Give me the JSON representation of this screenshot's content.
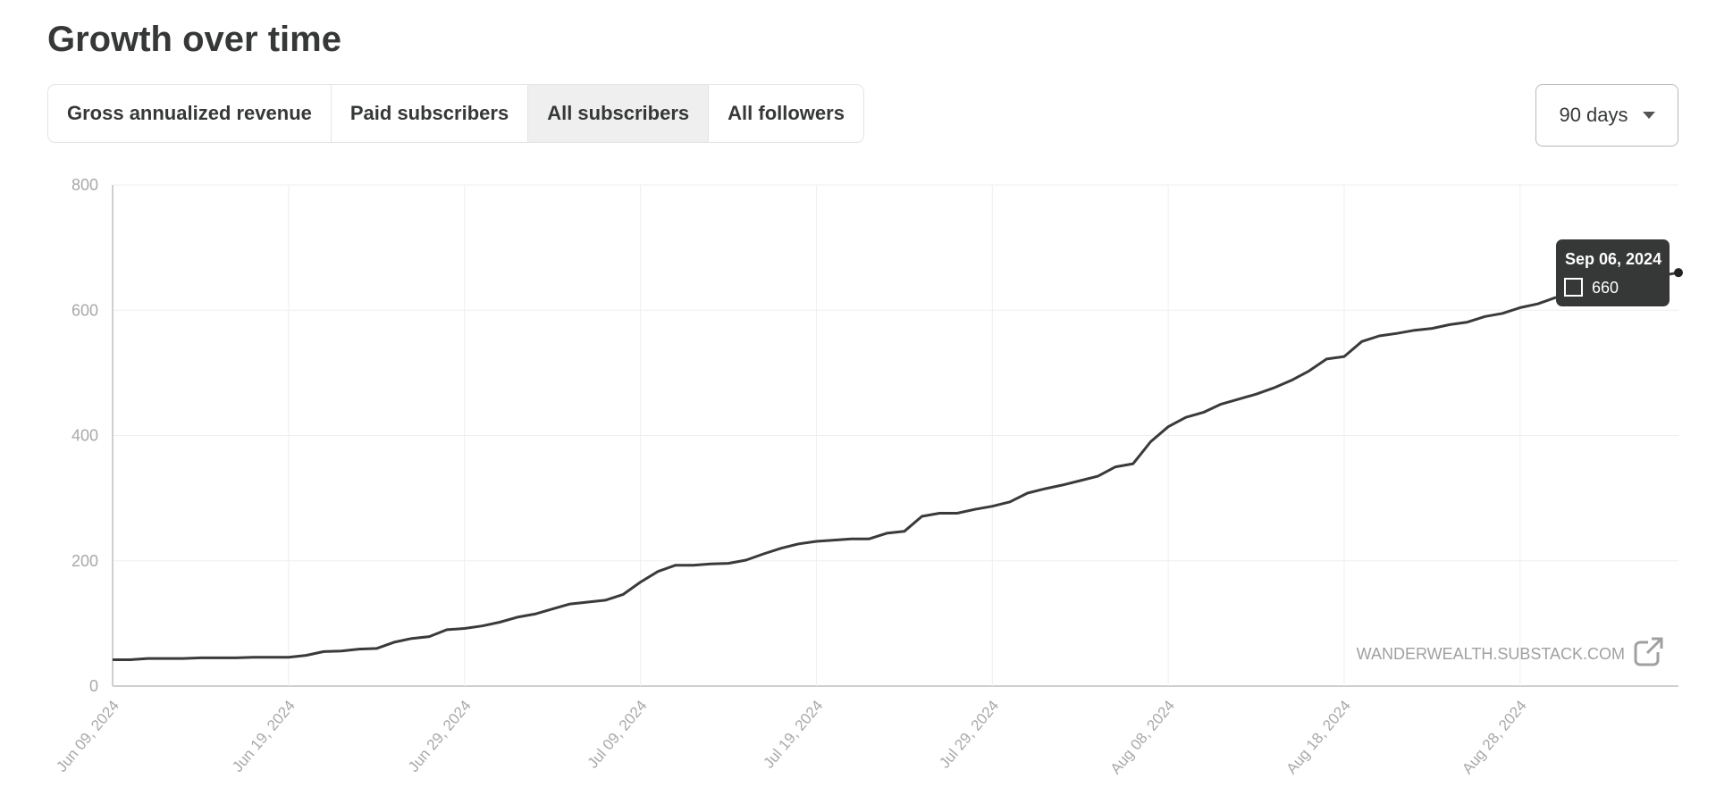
{
  "page": {
    "title": "Growth over time",
    "tabs": [
      {
        "label": "Gross annualized revenue",
        "active": false
      },
      {
        "label": "Paid subscribers",
        "active": false
      },
      {
        "label": "All subscribers",
        "active": true
      },
      {
        "label": "All followers",
        "active": false
      }
    ],
    "range_select": {
      "value": "90 days"
    }
  },
  "chart_data": {
    "type": "line",
    "title": "",
    "xlabel": "",
    "ylabel": "",
    "ylim": [
      0,
      800
    ],
    "yticks": [
      0,
      200,
      400,
      600,
      800
    ],
    "xticks": [
      "Jun 09, 2024",
      "Jun 19, 2024",
      "Jun 29, 2024",
      "Jul 09, 2024",
      "Jul 19, 2024",
      "Jul 29, 2024",
      "Aug 08, 2024",
      "Aug 18, 2024",
      "Aug 28, 2024"
    ],
    "x_start": "2024-06-09",
    "x_end": "2024-09-06",
    "grid": true,
    "line_color": "#3a3a3a",
    "series": [
      {
        "values": [
          {
            "x": "2024-06-09",
            "y": 42
          },
          {
            "x": "2024-06-10",
            "y": 42
          },
          {
            "x": "2024-06-11",
            "y": 44
          },
          {
            "x": "2024-06-12",
            "y": 44
          },
          {
            "x": "2024-06-13",
            "y": 44
          },
          {
            "x": "2024-06-14",
            "y": 45
          },
          {
            "x": "2024-06-15",
            "y": 45
          },
          {
            "x": "2024-06-16",
            "y": 45
          },
          {
            "x": "2024-06-17",
            "y": 46
          },
          {
            "x": "2024-06-18",
            "y": 46
          },
          {
            "x": "2024-06-19",
            "y": 46
          },
          {
            "x": "2024-06-20",
            "y": 49
          },
          {
            "x": "2024-06-21",
            "y": 55
          },
          {
            "x": "2024-06-22",
            "y": 56
          },
          {
            "x": "2024-06-23",
            "y": 59
          },
          {
            "x": "2024-06-24",
            "y": 60
          },
          {
            "x": "2024-06-25",
            "y": 70
          },
          {
            "x": "2024-06-26",
            "y": 76
          },
          {
            "x": "2024-06-27",
            "y": 79
          },
          {
            "x": "2024-06-28",
            "y": 90
          },
          {
            "x": "2024-06-29",
            "y": 92
          },
          {
            "x": "2024-06-30",
            "y": 96
          },
          {
            "x": "2024-07-01",
            "y": 102
          },
          {
            "x": "2024-07-02",
            "y": 110
          },
          {
            "x": "2024-07-03",
            "y": 115
          },
          {
            "x": "2024-07-04",
            "y": 123
          },
          {
            "x": "2024-07-05",
            "y": 131
          },
          {
            "x": "2024-07-06",
            "y": 134
          },
          {
            "x": "2024-07-07",
            "y": 137
          },
          {
            "x": "2024-07-08",
            "y": 146
          },
          {
            "x": "2024-07-09",
            "y": 166
          },
          {
            "x": "2024-07-10",
            "y": 183
          },
          {
            "x": "2024-07-11",
            "y": 193
          },
          {
            "x": "2024-07-12",
            "y": 193
          },
          {
            "x": "2024-07-13",
            "y": 195
          },
          {
            "x": "2024-07-14",
            "y": 196
          },
          {
            "x": "2024-07-15",
            "y": 201
          },
          {
            "x": "2024-07-16",
            "y": 211
          },
          {
            "x": "2024-07-17",
            "y": 220
          },
          {
            "x": "2024-07-18",
            "y": 227
          },
          {
            "x": "2024-07-19",
            "y": 231
          },
          {
            "x": "2024-07-20",
            "y": 233
          },
          {
            "x": "2024-07-21",
            "y": 235
          },
          {
            "x": "2024-07-22",
            "y": 235
          },
          {
            "x": "2024-07-23",
            "y": 244
          },
          {
            "x": "2024-07-24",
            "y": 247
          },
          {
            "x": "2024-07-25",
            "y": 271
          },
          {
            "x": "2024-07-26",
            "y": 276
          },
          {
            "x": "2024-07-27",
            "y": 276
          },
          {
            "x": "2024-07-28",
            "y": 282
          },
          {
            "x": "2024-07-29",
            "y": 287
          },
          {
            "x": "2024-07-30",
            "y": 294
          },
          {
            "x": "2024-07-31",
            "y": 308
          },
          {
            "x": "2024-08-01",
            "y": 315
          },
          {
            "x": "2024-08-02",
            "y": 321
          },
          {
            "x": "2024-08-03",
            "y": 328
          },
          {
            "x": "2024-08-04",
            "y": 335
          },
          {
            "x": "2024-08-05",
            "y": 350
          },
          {
            "x": "2024-08-06",
            "y": 355
          },
          {
            "x": "2024-08-07",
            "y": 390
          },
          {
            "x": "2024-08-08",
            "y": 414
          },
          {
            "x": "2024-08-09",
            "y": 429
          },
          {
            "x": "2024-08-10",
            "y": 437
          },
          {
            "x": "2024-08-11",
            "y": 450
          },
          {
            "x": "2024-08-12",
            "y": 458
          },
          {
            "x": "2024-08-13",
            "y": 466
          },
          {
            "x": "2024-08-14",
            "y": 476
          },
          {
            "x": "2024-08-15",
            "y": 488
          },
          {
            "x": "2024-08-16",
            "y": 503
          },
          {
            "x": "2024-08-17",
            "y": 522
          },
          {
            "x": "2024-08-18",
            "y": 526
          },
          {
            "x": "2024-08-19",
            "y": 550
          },
          {
            "x": "2024-08-20",
            "y": 559
          },
          {
            "x": "2024-08-21",
            "y": 563
          },
          {
            "x": "2024-08-22",
            "y": 568
          },
          {
            "x": "2024-08-23",
            "y": 571
          },
          {
            "x": "2024-08-24",
            "y": 577
          },
          {
            "x": "2024-08-25",
            "y": 581
          },
          {
            "x": "2024-08-26",
            "y": 590
          },
          {
            "x": "2024-08-27",
            "y": 595
          },
          {
            "x": "2024-08-28",
            "y": 604
          },
          {
            "x": "2024-08-29",
            "y": 610
          },
          {
            "x": "2024-08-30",
            "y": 620
          },
          {
            "x": "2024-08-31",
            "y": 626
          },
          {
            "x": "2024-09-01",
            "y": 630
          },
          {
            "x": "2024-09-02",
            "y": 637
          },
          {
            "x": "2024-09-03",
            "y": 643
          },
          {
            "x": "2024-09-04",
            "y": 649
          },
          {
            "x": "2024-09-05",
            "y": 655
          },
          {
            "x": "2024-09-06",
            "y": 660
          }
        ]
      }
    ],
    "tooltip": {
      "date": "Sep 06, 2024",
      "value": "660"
    },
    "watermark": "WANDERWEALTH.SUBSTACK.COM"
  }
}
